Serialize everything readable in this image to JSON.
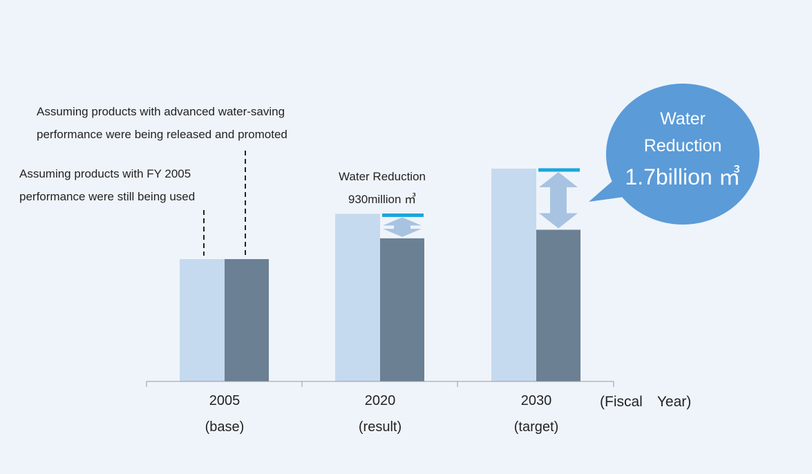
{
  "chart_data": {
    "type": "bar",
    "categories": [
      "2005",
      "2020",
      "2030"
    ],
    "sublabels": [
      "(base)",
      "(result)",
      "(target)"
    ],
    "axis_unit": "(Fiscal　Year)",
    "series": [
      {
        "name": "Assuming products with FY 2005 performance were still being used",
        "values": [
          1.0,
          1.37,
          1.74
        ],
        "color": "#c5daee"
      },
      {
        "name": "Assuming products with advanced water-saving performance were being released and promoted",
        "values": [
          1.0,
          1.17,
          1.24
        ],
        "color": "#6b8093"
      }
    ],
    "annotation_2005_base": [
      "Assuming products with FY 2005",
      "performance were still being used"
    ],
    "annotation_2005_advanced": [
      "Assuming products with advanced water-saving",
      "performance were being released and promoted"
    ],
    "reduction_2020": [
      "Water Reduction",
      "930million ㎥"
    ],
    "reduction_2030": [
      "Water",
      "Reduction",
      "1.7billion ㎥"
    ],
    "ylim": [
      0,
      1.8
    ],
    "colors": {
      "accent_line": "#1aa7dc",
      "arrow": "#a7c3e1",
      "bubble": "#5b9bd8",
      "axis": "#999999"
    }
  }
}
